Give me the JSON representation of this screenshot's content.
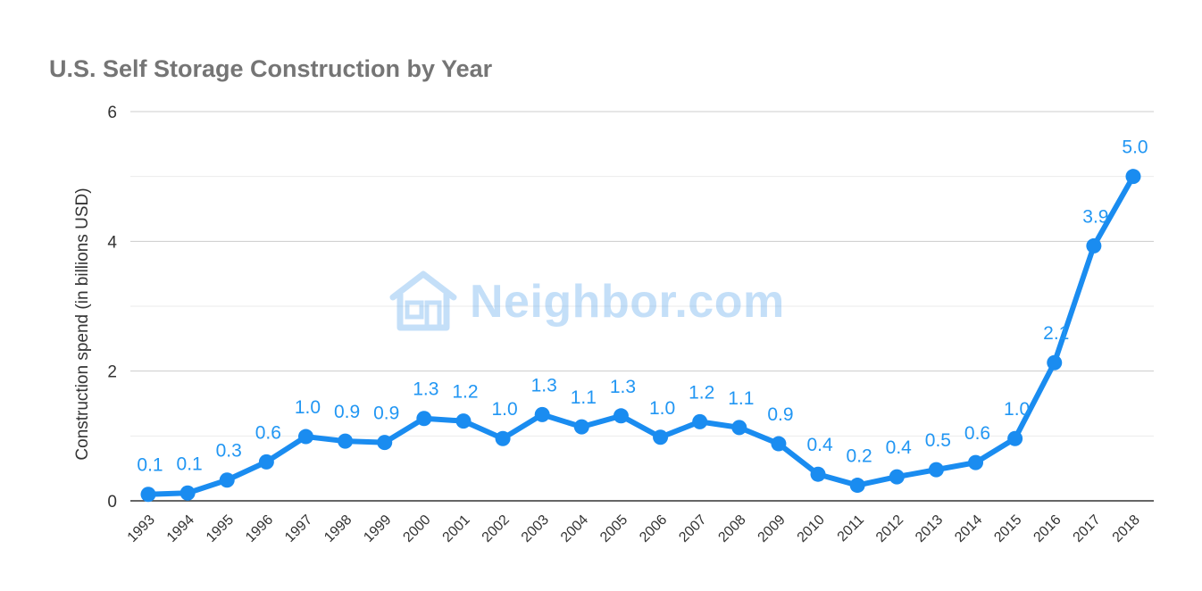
{
  "chart_data": {
    "type": "line",
    "title": "U.S. Self Storage Construction by Year",
    "xlabel": "",
    "ylabel": "Construction spend (in billions USD)",
    "ylim": [
      0,
      6
    ],
    "yticks": [
      0,
      2,
      4,
      6
    ],
    "grid": true,
    "legend": "none",
    "categories": [
      "1993",
      "1994",
      "1995",
      "1996",
      "1997",
      "1998",
      "1999",
      "2000",
      "2001",
      "2002",
      "2003",
      "2004",
      "2005",
      "2006",
      "2007",
      "2008",
      "2009",
      "2010",
      "2011",
      "2012",
      "2013",
      "2014",
      "2015",
      "2016",
      "2017",
      "2018"
    ],
    "series": [
      {
        "values": [
          0.1,
          0.12,
          0.32,
          0.6,
          0.99,
          0.92,
          0.9,
          1.27,
          1.23,
          0.96,
          1.33,
          1.14,
          1.31,
          0.98,
          1.22,
          1.13,
          0.88,
          0.41,
          0.24,
          0.37,
          0.48,
          0.59,
          0.96,
          2.13,
          3.93,
          5.0
        ],
        "labels": [
          "0.1",
          "0.1",
          "0.3",
          "0.6",
          "1.0",
          "0.9",
          "0.9",
          "1.3",
          "1.2",
          "1.0",
          "1.3",
          "1.1",
          "1.3",
          "1.0",
          "1.2",
          "1.1",
          "0.9",
          "0.4",
          "0.2",
          "0.4",
          "0.5",
          "0.6",
          "1.0",
          "2.1",
          "3.9",
          "5.0"
        ],
        "color": "#1a8cf0"
      }
    ],
    "watermark": "Neighbor.com"
  },
  "colors": {
    "line": "#1a8cf0",
    "data_label": "#2196f3",
    "grid_major": "#cccccc",
    "grid_minor": "#ebebeb",
    "axis": "#333333",
    "title": "#757575",
    "watermark": "#2f8fe8"
  },
  "icons": {
    "watermark_logo": "house-icon"
  }
}
